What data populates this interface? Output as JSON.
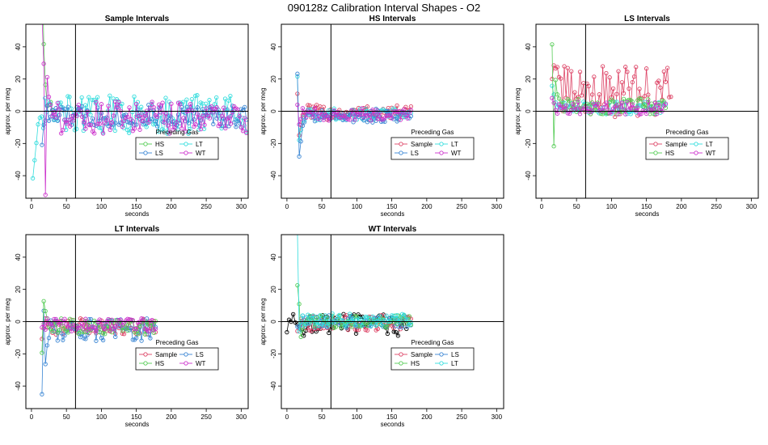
{
  "figure_title": "090128z   Calibration Interval Shapes - O2",
  "chart_data": [
    {
      "type": "scatter",
      "title": "Sample Intervals",
      "xlabel": "seconds",
      "ylabel": "approx. per meg",
      "xlim": [
        -8,
        310
      ],
      "ylim": [
        -54,
        54
      ],
      "xticks": [
        0,
        50,
        100,
        150,
        200,
        250,
        300
      ],
      "yticks": [
        -40,
        -20,
        0,
        20,
        40
      ],
      "vline": 63,
      "hline": 0,
      "legend": {
        "title": "Preceding Gas",
        "placement": "bottom-center",
        "entries": [
          {
            "label": "HS",
            "color": "#55cc55"
          },
          {
            "label": "LT",
            "color": "#33dddd"
          },
          {
            "label": "LS",
            "color": "#3a86d4"
          },
          {
            "label": "WT",
            "color": "#cc33cc"
          }
        ]
      },
      "series": [
        {
          "name": "HS",
          "color": "#55cc55",
          "start": 15,
          "end": 30,
          "step": 2.5,
          "spike": [
            110,
            40,
            15,
            5,
            2
          ],
          "noise": 6,
          "offset": 0
        },
        {
          "name": "LT",
          "color": "#33dddd",
          "start": 2,
          "end": 308,
          "step": 2.5,
          "spike": [
            -40,
            -30,
            -20,
            -10,
            -5,
            -3
          ],
          "noise": 12,
          "offset": -2
        },
        {
          "name": "LS",
          "color": "#3a86d4",
          "start": 15,
          "end": 308,
          "step": 2.5,
          "spike": [
            -20,
            -10,
            -5,
            2
          ],
          "noise": 7,
          "offset": -3
        },
        {
          "name": "WT",
          "color": "#cc33cc",
          "start": 15,
          "end": 308,
          "step": 2.5,
          "spike": [
            60,
            30,
            -50,
            20,
            10,
            5
          ],
          "noise": 10,
          "offset": -4
        }
      ]
    },
    {
      "type": "scatter",
      "title": "HS Intervals",
      "xlabel": "seconds",
      "ylabel": "approx. per meg",
      "xlim": [
        -8,
        310
      ],
      "ylim": [
        -54,
        54
      ],
      "xticks": [
        0,
        50,
        100,
        150,
        200,
        250,
        300
      ],
      "yticks": [
        -40,
        -20,
        0,
        20,
        40
      ],
      "vline": 63,
      "hline": 0,
      "legend": {
        "title": "Preceding Gas",
        "placement": "bottom-center",
        "entries": [
          {
            "label": "Sample",
            "color": "#dd4466"
          },
          {
            "label": "LT",
            "color": "#33dddd"
          },
          {
            "label": "LS",
            "color": "#3a86d4"
          },
          {
            "label": "WT",
            "color": "#cc33cc"
          }
        ]
      },
      "series": [
        {
          "name": "Sample",
          "color": "#dd4466",
          "start": 15,
          "end": 178,
          "step": 2.5,
          "spike": [
            10,
            -15,
            -8,
            -4
          ],
          "noise": 5,
          "offset": -1
        },
        {
          "name": "LT",
          "color": "#33dddd",
          "start": 15,
          "end": 178,
          "step": 2.5,
          "spike": [
            20,
            -20,
            -10,
            -5
          ],
          "noise": 4,
          "offset": -2
        },
        {
          "name": "LS",
          "color": "#3a86d4",
          "start": 15,
          "end": 178,
          "step": 2.5,
          "spike": [
            25,
            -28,
            -20,
            -10,
            -5
          ],
          "noise": 4,
          "offset": -3
        },
        {
          "name": "WT",
          "color": "#cc33cc",
          "start": 15,
          "end": 178,
          "step": 2.5,
          "spike": [
            5,
            -10,
            -5
          ],
          "noise": 4,
          "offset": -2
        }
      ]
    },
    {
      "type": "scatter",
      "title": "LS Intervals",
      "xlabel": "seconds",
      "ylabel": "approx. per meg",
      "xlim": [
        -8,
        310
      ],
      "ylim": [
        -54,
        54
      ],
      "xticks": [
        0,
        50,
        100,
        150,
        200,
        250,
        300
      ],
      "yticks": [
        -40,
        -20,
        0,
        20,
        40
      ],
      "vline": 63,
      "hline": 0,
      "legend": {
        "title": "Preceding Gas",
        "placement": "bottom-center",
        "entries": [
          {
            "label": "Sample",
            "color": "#dd4466"
          },
          {
            "label": "LT",
            "color": "#33dddd"
          },
          {
            "label": "HS",
            "color": "#55cc55"
          },
          {
            "label": "WT",
            "color": "#cc33cc"
          }
        ]
      },
      "series": [
        {
          "name": "Sample",
          "color": "#dd4466",
          "start": 15,
          "end": 185,
          "step": 2.5,
          "spike": [
            20,
            30,
            25
          ],
          "noise": 16,
          "offset": 12
        },
        {
          "name": "LT",
          "color": "#33dddd",
          "start": 15,
          "end": 178,
          "step": 2.5,
          "spike": [
            15,
            10,
            5
          ],
          "noise": 4,
          "offset": 2
        },
        {
          "name": "HS",
          "color": "#55cc55",
          "start": 15,
          "end": 178,
          "step": 2.5,
          "spike": [
            40,
            -20,
            20,
            10
          ],
          "noise": 5,
          "offset": 3
        },
        {
          "name": "WT",
          "color": "#cc33cc",
          "start": 15,
          "end": 178,
          "step": 2.5,
          "spike": [
            10,
            5
          ],
          "noise": 4,
          "offset": 2
        }
      ]
    },
    {
      "type": "scatter",
      "title": "LT Intervals",
      "xlabel": "seconds",
      "ylabel": "approx. per meg",
      "xlim": [
        -8,
        310
      ],
      "ylim": [
        -54,
        54
      ],
      "xticks": [
        0,
        50,
        100,
        150,
        200,
        250,
        300
      ],
      "yticks": [
        -40,
        -20,
        0,
        20,
        40
      ],
      "vline": 63,
      "hline": 0,
      "legend": {
        "title": "Preceding Gas",
        "placement": "bottom-center",
        "entries": [
          {
            "label": "Sample",
            "color": "#dd4466"
          },
          {
            "label": "LS",
            "color": "#3a86d4"
          },
          {
            "label": "HS",
            "color": "#55cc55"
          },
          {
            "label": "WT",
            "color": "#cc33cc"
          }
        ]
      },
      "series": [
        {
          "name": "Sample",
          "color": "#dd4466",
          "start": 15,
          "end": 178,
          "step": 2.5,
          "spike": [
            -10,
            -5
          ],
          "noise": 5,
          "offset": -3
        },
        {
          "name": "LS",
          "color": "#3a86d4",
          "start": 15,
          "end": 178,
          "step": 2.5,
          "spike": [
            -45,
            8,
            -25,
            -15,
            -10
          ],
          "noise": 7,
          "offset": -5
        },
        {
          "name": "HS",
          "color": "#55cc55",
          "start": 15,
          "end": 178,
          "step": 2.5,
          "spike": [
            -20,
            12,
            5
          ],
          "noise": 5,
          "offset": -3
        },
        {
          "name": "WT",
          "color": "#cc33cc",
          "start": 15,
          "end": 178,
          "step": 2.5,
          "spike": [
            -5
          ],
          "noise": 4,
          "offset": -2
        }
      ]
    },
    {
      "type": "scatter",
      "title": "WT Intervals",
      "xlabel": "seconds",
      "ylabel": "approx. per meg",
      "xlim": [
        -8,
        310
      ],
      "ylim": [
        -54,
        54
      ],
      "xticks": [
        0,
        50,
        100,
        150,
        200,
        250,
        300
      ],
      "yticks": [
        -40,
        -20,
        0,
        20,
        40
      ],
      "vline": 63,
      "hline": 0,
      "legend": {
        "title": "Preceding Gas",
        "placement": "bottom-center",
        "entries": [
          {
            "label": "Sample",
            "color": "#dd4466"
          },
          {
            "label": "LS",
            "color": "#3a86d4"
          },
          {
            "label": "HS",
            "color": "#55cc55"
          },
          {
            "label": "LT",
            "color": "#33dddd"
          }
        ]
      },
      "series": [
        {
          "name": "Black",
          "color": "#000000",
          "start": 0,
          "end": 172,
          "step": 3,
          "spike": [
            -5,
            2
          ],
          "noise": 7,
          "offset": -2
        },
        {
          "name": "Sample",
          "color": "#dd4466",
          "start": 15,
          "end": 178,
          "step": 2.5,
          "spike": [
            -5
          ],
          "noise": 5,
          "offset": -1
        },
        {
          "name": "LS",
          "color": "#3a86d4",
          "start": 15,
          "end": 178,
          "step": 2.5,
          "spike": [
            -3
          ],
          "noise": 4,
          "offset": 0
        },
        {
          "name": "HS",
          "color": "#55cc55",
          "start": 15,
          "end": 178,
          "step": 2.5,
          "spike": [
            22,
            10,
            -8,
            -4
          ],
          "noise": 4,
          "offset": 0
        },
        {
          "name": "LT",
          "color": "#33dddd",
          "start": 15,
          "end": 178,
          "step": 2.5,
          "spike": [
            55,
            -5
          ],
          "noise": 4,
          "offset": 1
        }
      ]
    }
  ]
}
